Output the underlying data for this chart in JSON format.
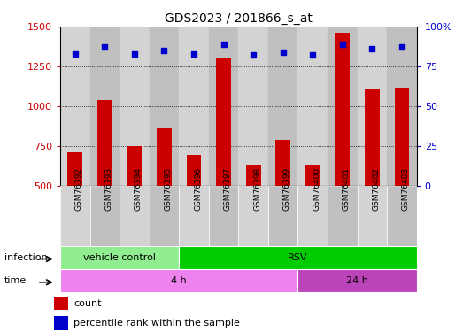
{
  "title": "GDS2023 / 201866_s_at",
  "samples": [
    "GSM76392",
    "GSM76393",
    "GSM76394",
    "GSM76395",
    "GSM76396",
    "GSM76397",
    "GSM76398",
    "GSM76399",
    "GSM76400",
    "GSM76401",
    "GSM76402",
    "GSM76403"
  ],
  "counts": [
    710,
    1040,
    750,
    860,
    695,
    1305,
    635,
    790,
    635,
    1460,
    1110,
    1115
  ],
  "percentile_ranks": [
    83,
    87,
    83,
    85,
    83,
    89,
    82,
    84,
    82,
    89,
    86,
    87
  ],
  "ylim_left": [
    500,
    1500
  ],
  "ylim_right": [
    0,
    100
  ],
  "yticks_left": [
    500,
    750,
    1000,
    1250,
    1500
  ],
  "yticks_right": [
    0,
    25,
    50,
    75,
    100
  ],
  "bar_color": "#cc0000",
  "dot_color": "#0000cc",
  "infection_labels": [
    {
      "label": "vehicle control",
      "start": 0,
      "end": 4,
      "color": "#90ee90"
    },
    {
      "label": "RSV",
      "start": 4,
      "end": 12,
      "color": "#00cc00"
    }
  ],
  "time_labels": [
    {
      "label": "4 h",
      "start": 0,
      "end": 8,
      "color": "#ee82ee"
    },
    {
      "label": "24 h",
      "start": 8,
      "end": 12,
      "color": "#bb44bb"
    }
  ],
  "legend_count_label": "count",
  "legend_percentile_label": "percentile rank within the sample",
  "col_bg_even": "#d3d3d3",
  "col_bg_odd": "#c0c0c0",
  "label_box_color": "#d3d3d3",
  "plot_bg": "#ffffff"
}
